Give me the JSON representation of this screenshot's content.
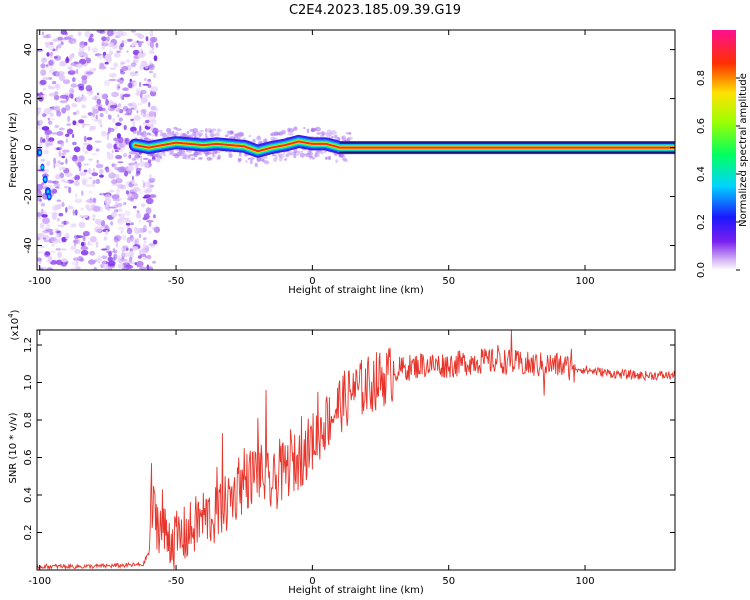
{
  "figure_title": "C2E4.2023.185.09.39.G19",
  "chart_data": [
    {
      "type": "heatmap",
      "name": "spectrogram",
      "xlabel": "Height of straight line (km)",
      "ylabel": "Frequency (Hz)",
      "xlim": [
        -101,
        133
      ],
      "ylim": [
        -50,
        48
      ],
      "xticks": [
        -100,
        -50,
        0,
        50,
        100
      ],
      "yticks": [
        -40,
        -20,
        0,
        20,
        40
      ],
      "colorbar": {
        "label": "Normalized spectral amplitude",
        "range": [
          0,
          1
        ],
        "ticks": [
          "0.0",
          "0.2",
          "0.4",
          "0.6",
          "0.8"
        ]
      },
      "ridge": {
        "x": [
          -65,
          -60,
          -55,
          -50,
          -45,
          -40,
          -35,
          -30,
          -25,
          -20,
          -15,
          -10,
          -5,
          0,
          5,
          10,
          20,
          40,
          60,
          80,
          100,
          120,
          133
        ],
        "y": [
          1,
          0,
          1,
          2,
          1.5,
          1,
          1.5,
          1,
          0.5,
          -1.5,
          0,
          1,
          2.5,
          1.5,
          1.5,
          0,
          0,
          0,
          0,
          0,
          0,
          0,
          0
        ]
      },
      "noise_region_x": [
        -101,
        -65
      ],
      "grid": false
    },
    {
      "type": "line",
      "name": "snr",
      "xlabel": "Height of straight line (km)",
      "ylabel": "SNR (10 * v/v)",
      "y_multiplier": "(x10",
      "y_multiplier_exp": "4",
      "xlim": [
        -101,
        133
      ],
      "ylim": [
        0,
        1.28
      ],
      "xticks": [
        -100,
        -50,
        0,
        50,
        100
      ],
      "yticks": [
        "0.2",
        "0.4",
        "0.6",
        "0.8",
        "1.0",
        "1.2"
      ],
      "color": "#e8352b",
      "envelope": {
        "x": [
          -101,
          -80,
          -62,
          -60,
          -59,
          -55,
          -50,
          -45,
          -40,
          -35,
          -30,
          -25,
          -20,
          -15,
          -10,
          -5,
          0,
          5,
          10,
          15,
          20,
          30,
          40,
          50,
          60,
          70,
          80,
          90,
          100,
          110,
          120,
          133
        ],
        "y": [
          0.02,
          0.02,
          0.03,
          0.1,
          0.35,
          0.22,
          0.17,
          0.22,
          0.3,
          0.3,
          0.4,
          0.48,
          0.55,
          0.46,
          0.55,
          0.6,
          0.7,
          0.8,
          0.9,
          0.96,
          1.0,
          1.07,
          1.1,
          1.1,
          1.12,
          1.12,
          1.1,
          1.1,
          1.07,
          1.05,
          1.04,
          1.04
        ]
      },
      "spikes": [
        {
          "x": -59,
          "y": 0.57
        },
        {
          "x": -55,
          "y": 0.43
        },
        {
          "x": -50,
          "y": 0.23
        },
        {
          "x": -42,
          "y": 0.35
        },
        {
          "x": -35,
          "y": 0.55
        },
        {
          "x": -33,
          "y": 0.73
        },
        {
          "x": -27,
          "y": 0.6
        },
        {
          "x": -25,
          "y": 0.65
        },
        {
          "x": -20,
          "y": 0.81
        },
        {
          "x": -17,
          "y": 0.96
        },
        {
          "x": -12,
          "y": 0.7
        },
        {
          "x": -8,
          "y": 0.75
        },
        {
          "x": -4,
          "y": 0.82
        },
        {
          "x": 2,
          "y": 0.95
        },
        {
          "x": 5,
          "y": 0.9
        },
        {
          "x": 15,
          "y": 1.05
        },
        {
          "x": 40,
          "y": 1.15
        },
        {
          "x": 62,
          "y": 1.18
        },
        {
          "x": 68,
          "y": 1.2
        },
        {
          "x": 73,
          "y": 1.28
        },
        {
          "x": 78,
          "y": 1.05
        },
        {
          "x": 85,
          "y": 0.93
        },
        {
          "x": 95,
          "y": 1.18
        },
        {
          "x": 96,
          "y": 1.0
        }
      ],
      "grid": false
    }
  ]
}
